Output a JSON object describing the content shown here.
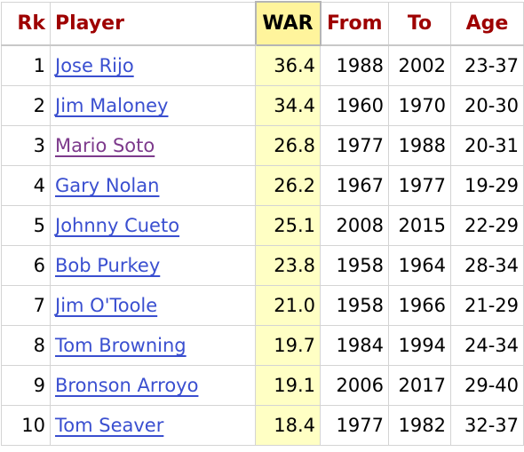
{
  "table": {
    "headers": {
      "rk": "Rk",
      "player": "Player",
      "war": "WAR",
      "from": "From",
      "to": "To",
      "age": "Age"
    },
    "rows": [
      {
        "rk": "1",
        "player": "Jose Rijo",
        "war": "36.4",
        "from": "1988",
        "to": "2002",
        "age": "23-37",
        "visited": false
      },
      {
        "rk": "2",
        "player": "Jim Maloney",
        "war": "34.4",
        "from": "1960",
        "to": "1970",
        "age": "20-30",
        "visited": false
      },
      {
        "rk": "3",
        "player": "Mario Soto",
        "war": "26.8",
        "from": "1977",
        "to": "1988",
        "age": "20-31",
        "visited": true
      },
      {
        "rk": "4",
        "player": "Gary Nolan",
        "war": "26.2",
        "from": "1967",
        "to": "1977",
        "age": "19-29",
        "visited": false
      },
      {
        "rk": "5",
        "player": "Johnny Cueto",
        "war": "25.1",
        "from": "2008",
        "to": "2015",
        "age": "22-29",
        "visited": false
      },
      {
        "rk": "6",
        "player": "Bob Purkey",
        "war": "23.8",
        "from": "1958",
        "to": "1964",
        "age": "28-34",
        "visited": false
      },
      {
        "rk": "7",
        "player": "Jim O'Toole",
        "war": "21.0",
        "from": "1958",
        "to": "1966",
        "age": "21-29",
        "visited": false
      },
      {
        "rk": "8",
        "player": "Tom Browning",
        "war": "19.7",
        "from": "1984",
        "to": "1994",
        "age": "24-34",
        "visited": false
      },
      {
        "rk": "9",
        "player": "Bronson Arroyo",
        "war": "19.1",
        "from": "2006",
        "to": "2017",
        "age": "29-40",
        "visited": false
      },
      {
        "rk": "10",
        "player": "Tom Seaver",
        "war": "18.4",
        "from": "1977",
        "to": "1982",
        "age": "32-37",
        "visited": false
      }
    ]
  },
  "colors": {
    "header_text": "#9e0000",
    "link": "#3a4fd0",
    "link_visited": "#7d3a8c",
    "sorted_header_bg": "#fff49c",
    "sorted_cell_bg": "#ffffc4"
  }
}
